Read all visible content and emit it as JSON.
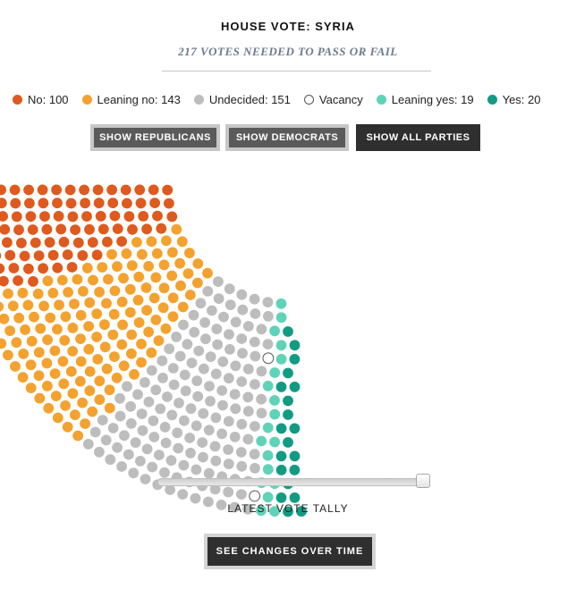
{
  "header": {
    "title": "HOUSE VOTE: SYRIA",
    "subtitle": "217 VOTES NEEDED TO PASS OR FAIL"
  },
  "legend": [
    {
      "key": "no",
      "label": "No: 100",
      "color": "#de5a1e",
      "count": 100
    },
    {
      "key": "leaning-no",
      "label": "Leaning no: 143",
      "color": "#f3a22f",
      "count": 143
    },
    {
      "key": "undecided",
      "label": "Undecided: 151",
      "color": "#bdbdbd",
      "count": 151
    },
    {
      "key": "vacancy",
      "label": "Vacancy",
      "color": "#ffffff",
      "outline": "#555555",
      "count": 2
    },
    {
      "key": "leaning-yes",
      "label": "Leaning yes: 19",
      "color": "#5fd3b7",
      "count": 19
    },
    {
      "key": "yes",
      "label": "Yes: 20",
      "color": "#129b83",
      "count": 20
    }
  ],
  "filters": {
    "republicans": "SHOW REPUBLICANS",
    "democrats": "SHOW DEMOCRATS",
    "all": "SHOW ALL PARTIES",
    "selected": "all"
  },
  "slider": {
    "label": "LATEST VOTE TALLY",
    "value": 1.0
  },
  "cta": {
    "label": "SEE CHANGES OVER TIME"
  }
}
